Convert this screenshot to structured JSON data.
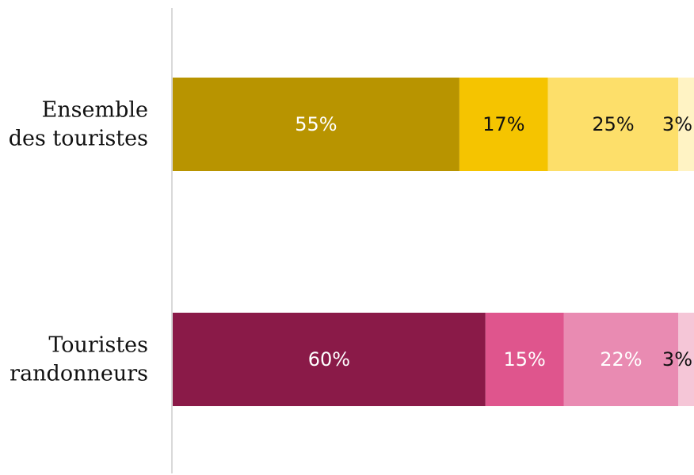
{
  "chart_data": {
    "type": "bar",
    "orientation": "horizontal",
    "stacked": true,
    "categories": [
      {
        "name": "Ensemble des touristes",
        "lines": [
          "Ensemble",
          "des touristes"
        ]
      },
      {
        "name": "Touristes randonneurs",
        "lines": [
          "Touristes",
          "randonneurs"
        ]
      }
    ],
    "bars": [
      {
        "values": [
          55,
          17,
          25,
          3
        ],
        "labels": [
          "55%",
          "17%",
          "25%",
          "3%"
        ],
        "colors": [
          "#B89400",
          "#F5C400",
          "#FDDF6A",
          "#FFF3C4"
        ],
        "label_colors": [
          "#ffffff",
          "#111111",
          "#111111",
          "#111111"
        ]
      },
      {
        "values": [
          60,
          15,
          22,
          3
        ],
        "labels": [
          "60%",
          "15%",
          "22%",
          "3%"
        ],
        "colors": [
          "#8A1A48",
          "#DF558D",
          "#E98BB2",
          "#F5C6D7"
        ],
        "label_colors": [
          "#ffffff",
          "#ffffff",
          "#ffffff",
          "#111111"
        ]
      }
    ],
    "xlim": [
      0,
      100
    ],
    "grid": false,
    "legend": "none",
    "axis_color": "#d9d9d9"
  }
}
